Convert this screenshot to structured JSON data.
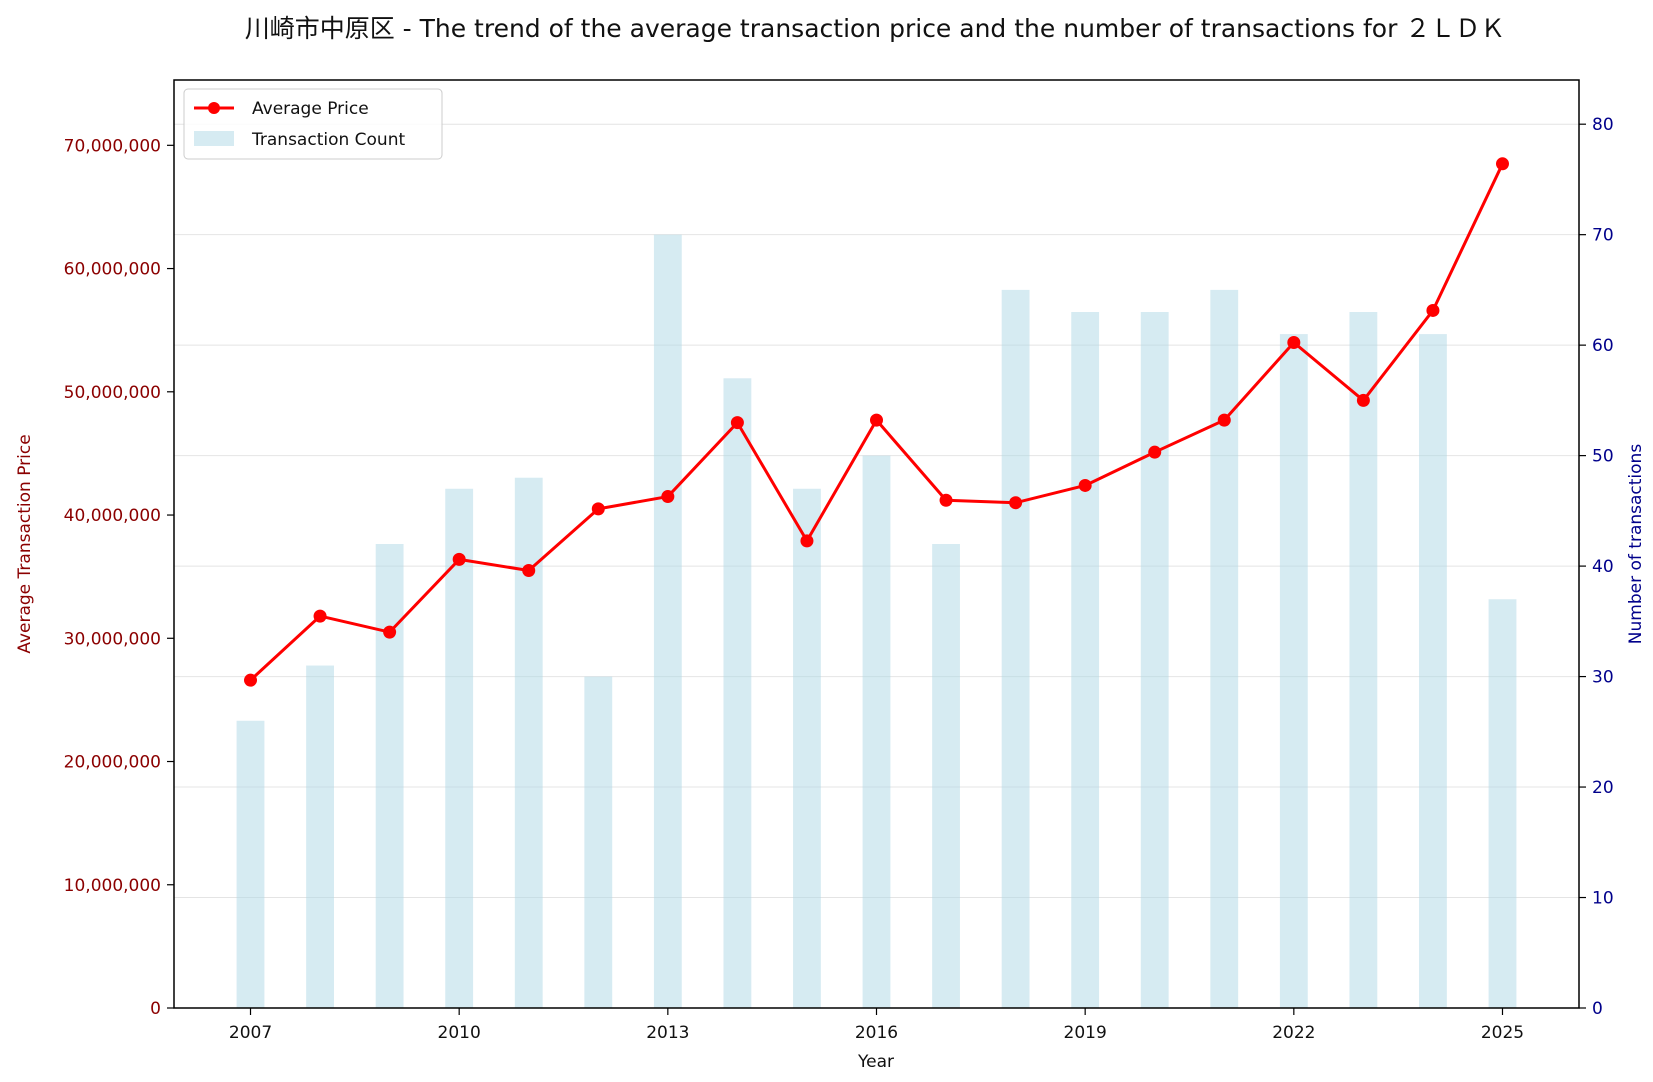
{
  "colors": {
    "price_line": "#ff0000",
    "count_bar": "#add8e6",
    "left_axis": "#8b0000",
    "right_axis": "#00008b",
    "grid": "#d9d9d9"
  },
  "chart_data": {
    "type": "bar",
    "title": "川崎市中原区 - The trend of the average transaction price and the number of transactions for ２ＬＤＫ",
    "xlabel": "Year",
    "ylabel": "Average Transaction Price",
    "y2label": "Number of transactions",
    "x": [
      2007,
      2008,
      2009,
      2010,
      2011,
      2012,
      2013,
      2014,
      2015,
      2016,
      2017,
      2018,
      2019,
      2020,
      2021,
      2022,
      2023,
      2024,
      2025
    ],
    "xticks": [
      "2007",
      "2010",
      "2013",
      "2016",
      "2019",
      "2022",
      "2025"
    ],
    "xlim": [
      2005.9,
      2026.1
    ],
    "ylim": [
      0,
      75300000
    ],
    "y2lim": [
      0,
      84
    ],
    "yticks": [
      "0",
      "10,000,000",
      "20,000,000",
      "30,000,000",
      "40,000,000",
      "50,000,000",
      "60,000,000",
      "70,000,000"
    ],
    "y2ticks": [
      "0",
      "10",
      "20",
      "30",
      "40",
      "50",
      "60",
      "70",
      "80"
    ],
    "grid": "horizontal, right axis",
    "legend_position": "top-left",
    "series": [
      {
        "name": "Average Price",
        "type": "line",
        "axis": "left",
        "values": [
          26600000,
          31800000,
          30500000,
          36400000,
          35500000,
          40500000,
          41500000,
          47500000,
          37900000,
          47700000,
          41200000,
          41000000,
          42400000,
          45100000,
          47700000,
          54000000,
          49300000,
          56600000,
          68500000
        ]
      },
      {
        "name": "Transaction Count",
        "type": "bar",
        "axis": "right",
        "values": [
          26,
          31,
          42,
          47,
          48,
          30,
          70,
          57,
          47,
          50,
          42,
          65,
          63,
          63,
          65,
          61,
          63,
          61,
          37
        ]
      }
    ]
  }
}
